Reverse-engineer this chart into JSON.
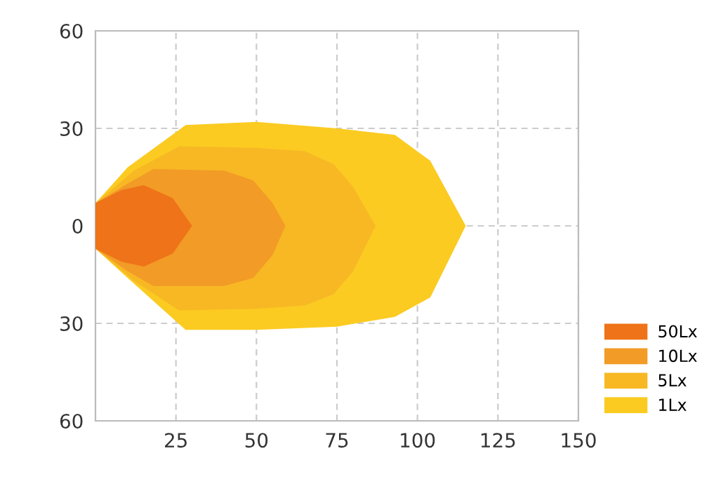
{
  "chart_data": {
    "type": "area",
    "series": [
      {
        "name": "50Lx",
        "color": "#ef7318",
        "x": [
          0,
          8,
          15,
          24,
          30
        ],
        "values": [
          7,
          11,
          12.5,
          8.5,
          0
        ]
      },
      {
        "color": "#ef7318",
        "x": [
          0,
          8,
          15,
          24,
          30
        ],
        "values": [
          -7,
          -11,
          -12.5,
          -8.5,
          0
        ]
      },
      {
        "name": "10Lx",
        "color": "#f29b26",
        "x": [
          0,
          10,
          18,
          40,
          49,
          55,
          59
        ],
        "values": [
          7,
          13,
          17.5,
          17,
          14,
          7,
          0
        ]
      },
      {
        "color": "#f29b26",
        "x": [
          0,
          10,
          18,
          40,
          49,
          55,
          59
        ],
        "values": [
          -7,
          -14,
          -18.5,
          -18.5,
          -16,
          -9,
          0
        ]
      },
      {
        "name": "5Lx",
        "color": "#f8b824",
        "x": [
          0,
          12,
          26,
          50,
          65,
          74,
          80,
          87
        ],
        "values": [
          7,
          17,
          24.5,
          24,
          23,
          19,
          12,
          0
        ]
      },
      {
        "color": "#f8b824",
        "x": [
          0,
          12,
          26,
          50,
          65,
          74,
          80,
          87
        ],
        "values": [
          -7,
          -17,
          -26,
          -25.5,
          -24.5,
          -21,
          -14,
          0
        ]
      },
      {
        "name": "1Lx",
        "color": "#fbcb22",
        "x": [
          0,
          10,
          28,
          50,
          75,
          93,
          104,
          115
        ],
        "values": [
          7,
          18,
          31,
          32,
          30,
          28,
          20,
          0
        ]
      },
      {
        "color": "#fbcb22",
        "x": [
          0,
          10,
          28,
          50,
          75,
          93,
          104,
          115
        ],
        "values": [
          -7,
          -16,
          -32,
          -32,
          -31,
          -28,
          -22,
          0
        ]
      }
    ],
    "xlim": [
      0,
      150
    ],
    "xticks": [
      25,
      50,
      75,
      100,
      125,
      150
    ],
    "ylim": [
      -60,
      60
    ],
    "yticks": [
      {
        "value": -60,
        "label": "60"
      },
      {
        "value": -30,
        "label": "30"
      },
      0,
      30,
      60
    ],
    "grid": true,
    "legend": "bottom right"
  }
}
